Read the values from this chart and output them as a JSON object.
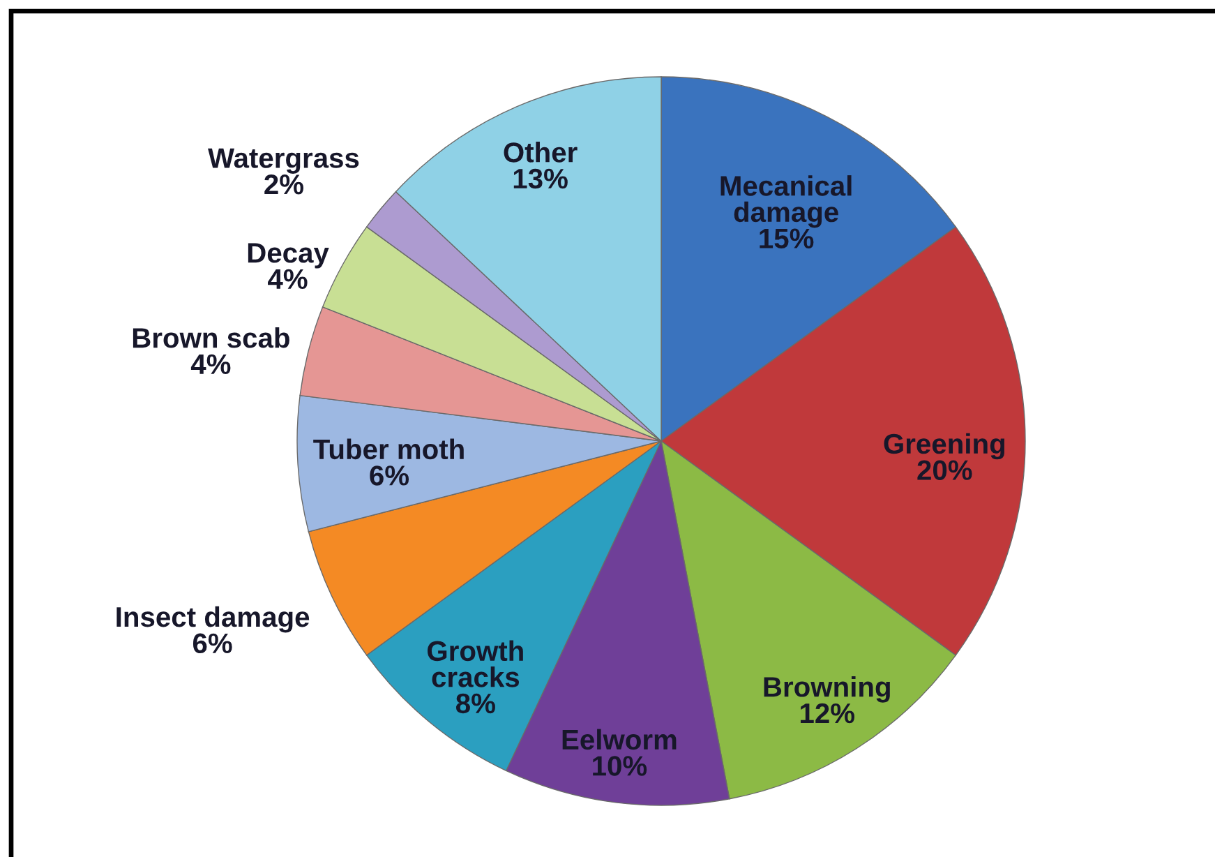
{
  "chart_data": {
    "type": "pie",
    "categories": [
      "Mecanical damage",
      "Greening",
      "Browning",
      "Eelworm",
      "Growth cracks",
      "Insect damage",
      "Tuber moth",
      "Brown scab",
      "Decay",
      "Watergrass",
      "Other"
    ],
    "values": [
      15,
      20,
      12,
      10,
      8,
      6,
      6,
      4,
      4,
      2,
      13
    ],
    "value_labels": [
      "15%",
      "20%",
      "12%",
      "10%",
      "8%",
      "6%",
      "6%",
      "4%",
      "4%",
      "2%",
      "13%"
    ],
    "colors": [
      "#3a73be",
      "#c0393b",
      "#8cba45",
      "#6f3f98",
      "#2b9fc0",
      "#f48a24",
      "#9db8e2",
      "#e59694",
      "#c8df94",
      "#ad9bd0",
      "#8fd1e6"
    ]
  }
}
